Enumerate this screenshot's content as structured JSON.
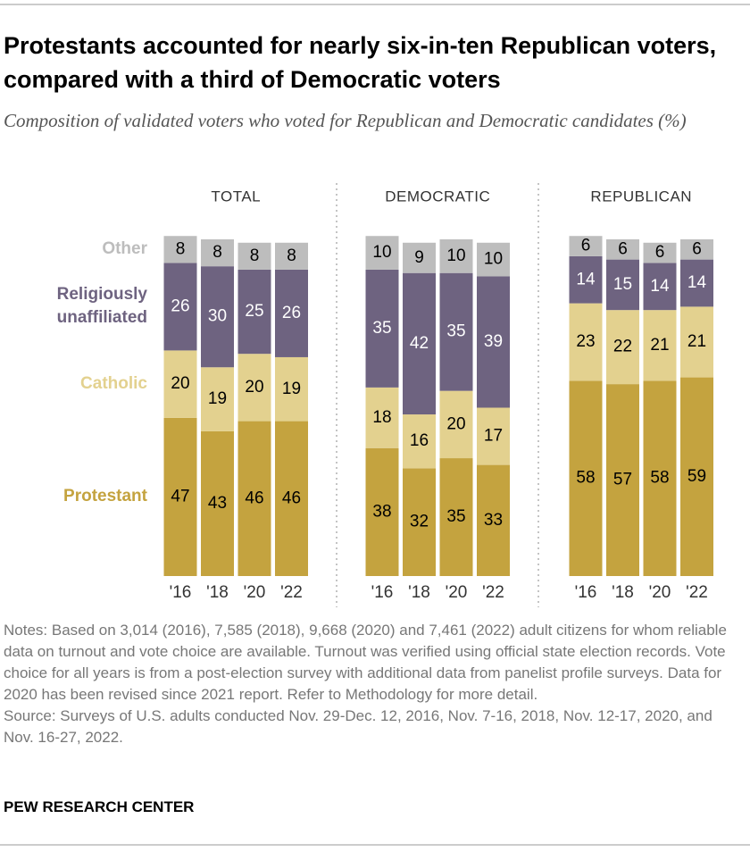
{
  "title": "Protestants accounted for nearly six-in-ten Republican voters, compared with a third of Democratic voters",
  "subtitle": "Composition of validated voters who voted for Republican and Democratic candidates (%)",
  "notes": "Notes: Based on 3,014 (2016), 7,585 (2018), 9,668 (2020) and 7,461 (2022) adult citizens for whom reliable data on turnout and vote choice are available. Turnout was verified using official state election records. Vote choice for all years is from a post-election survey with additional data from panelist profile surveys. Data for 2020 has been revised since 2021 report. Refer to Methodology for more detail.",
  "source": "Source: Surveys of U.S. adults conducted Nov. 29-Dec. 12, 2016, Nov. 7-16, 2018, Nov. 12-17, 2020, and Nov. 16-27, 2022.",
  "brand": "PEW RESEARCH CENTER",
  "chart_data": [
    {
      "type": "stacked_bar",
      "title": "TOTAL",
      "categories": [
        "'16",
        "'18",
        "'20",
        "'22"
      ],
      "series": [
        {
          "name": "Protestant",
          "color": "#c4a33f",
          "values": [
            47,
            43,
            46,
            46
          ]
        },
        {
          "name": "Catholic",
          "color": "#e3d18f",
          "values": [
            20,
            19,
            20,
            19
          ]
        },
        {
          "name": "Religiously unaffiliated",
          "color": "#6e6380",
          "values": [
            26,
            30,
            25,
            26
          ]
        },
        {
          "name": "Other",
          "color": "#bdbdbd",
          "values": [
            8,
            8,
            8,
            8
          ]
        }
      ]
    },
    {
      "type": "stacked_bar",
      "title": "DEMOCRATIC",
      "categories": [
        "'16",
        "'18",
        "'20",
        "'22"
      ],
      "series": [
        {
          "color": "#c4a33f",
          "values": [
            38,
            32,
            35,
            33
          ]
        },
        {
          "color": "#e3d18f",
          "values": [
            18,
            16,
            20,
            17
          ]
        },
        {
          "color": "#6e6380",
          "values": [
            35,
            42,
            35,
            39
          ]
        },
        {
          "color": "#bdbdbd",
          "values": [
            10,
            9,
            10,
            10
          ]
        }
      ]
    },
    {
      "type": "stacked_bar",
      "title": "REPUBLICAN",
      "categories": [
        "'16",
        "'18",
        "'20",
        "'22"
      ],
      "series": [
        {
          "color": "#c4a33f",
          "values": [
            58,
            57,
            58,
            59
          ]
        },
        {
          "color": "#e3d18f",
          "values": [
            23,
            22,
            21,
            21
          ]
        },
        {
          "color": "#6e6380",
          "values": [
            14,
            15,
            14,
            14
          ]
        },
        {
          "color": "#bdbdbd",
          "values": [
            6,
            6,
            6,
            6
          ]
        }
      ]
    }
  ]
}
